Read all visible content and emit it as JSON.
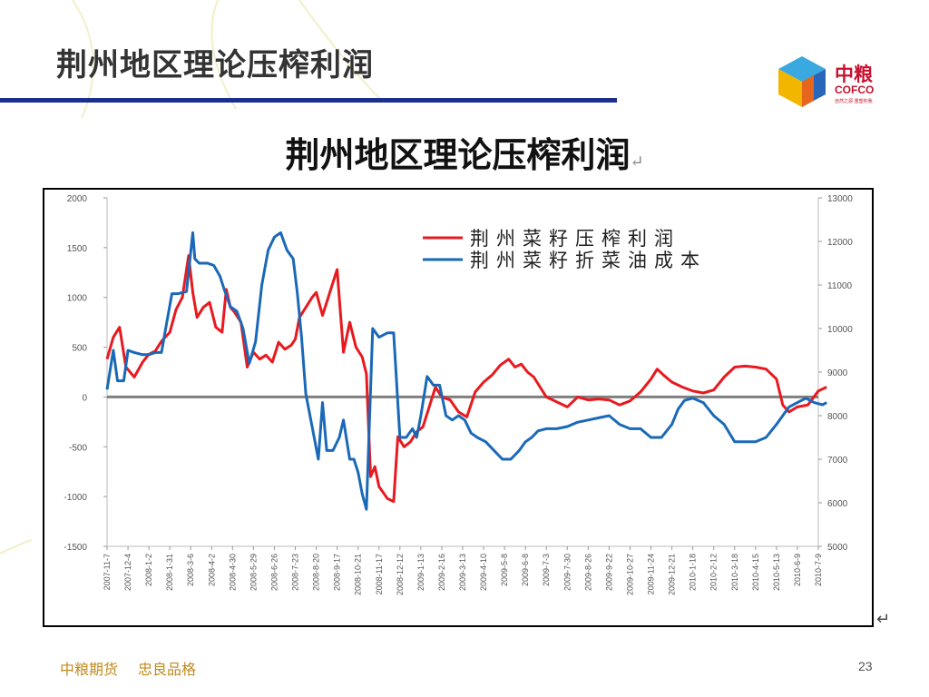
{
  "slide": {
    "title": "荆州地区理论压榨利润",
    "footer_company": "中粮期货",
    "footer_motto": "忠良品格",
    "page_number": "23",
    "accent_color": "#1c2f8f"
  },
  "logo": {
    "name_cn": "中粮",
    "name_en": "COFCO",
    "tagline": "自然之源 重塑你我",
    "colors": [
      "#f2b600",
      "#e8651e",
      "#2a66b8",
      "#39a9e0"
    ]
  },
  "chart_data": {
    "type": "line",
    "title": "荆州地区理论压榨利润",
    "x_labels": [
      "2007-11-7",
      "2007-12-4",
      "2008-1-2",
      "2008-1-31",
      "2008-3-6",
      "2008-4-2",
      "2008-4-30",
      "2008-5-29",
      "2008-6-26",
      "2008-7-23",
      "2008-8-20",
      "2008-9-17",
      "2008-10-21",
      "2008-11-17",
      "2008-12-12",
      "2009-1-13",
      "2009-2-16",
      "2009-3-13",
      "2009-4-10",
      "2009-5-8",
      "2009-6-8",
      "2009-7-3",
      "2009-7-30",
      "2009-8-26",
      "2009-9-22",
      "2009-10-27",
      "2009-11-24",
      "2009-12-21",
      "2010-1-18",
      "2010-2-12",
      "2010-3-18",
      "2010-4-15",
      "2010-5-13",
      "2010-6-9",
      "2010-7-9"
    ],
    "y_left": {
      "min": -1500,
      "max": 2000,
      "ticks": [
        2000,
        1500,
        1000,
        500,
        0,
        -500,
        -1000,
        -1500
      ]
    },
    "y_right": {
      "min": 5000,
      "max": 13000,
      "ticks": [
        13000,
        12000,
        11000,
        10000,
        9000,
        8000,
        7000,
        6000,
        5000
      ]
    },
    "zero_line": 0,
    "legend_position": "top-right",
    "series": [
      {
        "name": "荆州菜籽压榨利润",
        "axis": "left",
        "color": "#e8191f",
        "points": [
          [
            0,
            380
          ],
          [
            0.3,
            600
          ],
          [
            0.6,
            700
          ],
          [
            0.9,
            300
          ],
          [
            1.3,
            200
          ],
          [
            1.7,
            350
          ],
          [
            2,
            430
          ],
          [
            2.3,
            460
          ],
          [
            2.6,
            560
          ],
          [
            3,
            650
          ],
          [
            3.3,
            880
          ],
          [
            3.6,
            1000
          ],
          [
            3.9,
            1420
          ],
          [
            4.1,
            1050
          ],
          [
            4.3,
            800
          ],
          [
            4.6,
            900
          ],
          [
            4.9,
            950
          ],
          [
            5.2,
            700
          ],
          [
            5.5,
            650
          ],
          [
            5.7,
            1080
          ],
          [
            5.9,
            900
          ],
          [
            6.1,
            850
          ],
          [
            6.4,
            750
          ],
          [
            6.7,
            300
          ],
          [
            7,
            450
          ],
          [
            7.3,
            380
          ],
          [
            7.6,
            420
          ],
          [
            7.9,
            350
          ],
          [
            8.2,
            550
          ],
          [
            8.5,
            480
          ],
          [
            8.8,
            520
          ],
          [
            9,
            580
          ],
          [
            9.2,
            800
          ],
          [
            9.5,
            900
          ],
          [
            9.8,
            1000
          ],
          [
            10,
            1050
          ],
          [
            10.3,
            820
          ],
          [
            10.5,
            950
          ],
          [
            10.8,
            1150
          ],
          [
            11,
            1280
          ],
          [
            11.3,
            450
          ],
          [
            11.6,
            750
          ],
          [
            11.9,
            500
          ],
          [
            12.2,
            400
          ],
          [
            12.4,
            230
          ],
          [
            12.6,
            -800
          ],
          [
            12.8,
            -700
          ],
          [
            13,
            -900
          ],
          [
            13.4,
            -1020
          ],
          [
            13.7,
            -1050
          ],
          [
            13.9,
            -400
          ],
          [
            14.2,
            -500
          ],
          [
            14.5,
            -450
          ],
          [
            14.8,
            -350
          ],
          [
            15.1,
            -300
          ],
          [
            15.4,
            -100
          ],
          [
            15.7,
            100
          ],
          [
            16,
            0
          ],
          [
            16.4,
            -30
          ],
          [
            16.8,
            -150
          ],
          [
            17.2,
            -200
          ],
          [
            17.6,
            50
          ],
          [
            18,
            150
          ],
          [
            18.4,
            220
          ],
          [
            18.8,
            320
          ],
          [
            19.2,
            380
          ],
          [
            19.5,
            300
          ],
          [
            19.8,
            330
          ],
          [
            20.1,
            250
          ],
          [
            20.4,
            200
          ],
          [
            20.7,
            100
          ],
          [
            21,
            0
          ],
          [
            21.5,
            -50
          ],
          [
            22,
            -100
          ],
          [
            22.5,
            0
          ],
          [
            23,
            -30
          ],
          [
            23.5,
            -20
          ],
          [
            24,
            -30
          ],
          [
            24.5,
            -80
          ],
          [
            25,
            -40
          ],
          [
            25.5,
            50
          ],
          [
            26,
            180
          ],
          [
            26.3,
            280
          ],
          [
            26.6,
            220
          ],
          [
            27,
            150
          ],
          [
            27.5,
            100
          ],
          [
            28,
            60
          ],
          [
            28.5,
            40
          ],
          [
            29,
            70
          ],
          [
            29.5,
            200
          ],
          [
            30,
            300
          ],
          [
            30.5,
            310
          ],
          [
            31,
            300
          ],
          [
            31.5,
            280
          ],
          [
            32,
            180
          ],
          [
            32.3,
            -80
          ],
          [
            32.6,
            -150
          ],
          [
            33,
            -100
          ],
          [
            33.5,
            -80
          ],
          [
            34,
            60
          ],
          [
            34.4,
            100
          ]
        ]
      },
      {
        "name": "荆州菜籽折菜油成本",
        "axis": "right",
        "color": "#1a69b8",
        "points": [
          [
            0,
            8600
          ],
          [
            0.3,
            9500
          ],
          [
            0.5,
            8800
          ],
          [
            0.8,
            8800
          ],
          [
            1,
            9500
          ],
          [
            1.3,
            9450
          ],
          [
            1.7,
            9400
          ],
          [
            2,
            9400
          ],
          [
            2.3,
            9450
          ],
          [
            2.6,
            9450
          ],
          [
            2.8,
            10000
          ],
          [
            3.1,
            10800
          ],
          [
            3.4,
            10800
          ],
          [
            3.8,
            10850
          ],
          [
            4.1,
            12200
          ],
          [
            4.2,
            11600
          ],
          [
            4.4,
            11500
          ],
          [
            4.8,
            11500
          ],
          [
            5.1,
            11450
          ],
          [
            5.4,
            11200
          ],
          [
            5.6,
            10900
          ],
          [
            5.9,
            10500
          ],
          [
            6.2,
            10400
          ],
          [
            6.5,
            10000
          ],
          [
            6.8,
            9200
          ],
          [
            7.1,
            9700
          ],
          [
            7.4,
            11000
          ],
          [
            7.7,
            11800
          ],
          [
            8,
            12100
          ],
          [
            8.3,
            12200
          ],
          [
            8.6,
            11800
          ],
          [
            8.9,
            11600
          ],
          [
            9.1,
            10800
          ],
          [
            9.3,
            9800
          ],
          [
            9.5,
            8500
          ],
          [
            9.7,
            8000
          ],
          [
            9.9,
            7500
          ],
          [
            10.1,
            7000
          ],
          [
            10.3,
            8300
          ],
          [
            10.5,
            7200
          ],
          [
            10.8,
            7200
          ],
          [
            11.1,
            7500
          ],
          [
            11.3,
            7900
          ],
          [
            11.6,
            7000
          ],
          [
            11.8,
            7000
          ],
          [
            12,
            6700
          ],
          [
            12.2,
            6200
          ],
          [
            12.4,
            5850
          ],
          [
            12.7,
            10000
          ],
          [
            13,
            9800
          ],
          [
            13.4,
            9900
          ],
          [
            13.7,
            9900
          ],
          [
            14,
            7500
          ],
          [
            14.3,
            7500
          ],
          [
            14.6,
            7700
          ],
          [
            14.8,
            7500
          ],
          [
            15,
            8000
          ],
          [
            15.3,
            8900
          ],
          [
            15.6,
            8700
          ],
          [
            15.9,
            8700
          ],
          [
            16.2,
            8000
          ],
          [
            16.5,
            7900
          ],
          [
            16.8,
            8000
          ],
          [
            17.1,
            7900
          ],
          [
            17.4,
            7600
          ],
          [
            17.7,
            7500
          ],
          [
            18.1,
            7400
          ],
          [
            18.5,
            7200
          ],
          [
            18.9,
            7000
          ],
          [
            19.3,
            7000
          ],
          [
            19.7,
            7200
          ],
          [
            20,
            7400
          ],
          [
            20.3,
            7500
          ],
          [
            20.6,
            7650
          ],
          [
            21,
            7700
          ],
          [
            21.5,
            7700
          ],
          [
            22,
            7750
          ],
          [
            22.5,
            7850
          ],
          [
            23,
            7900
          ],
          [
            23.5,
            7950
          ],
          [
            24,
            8000
          ],
          [
            24.5,
            7800
          ],
          [
            25,
            7700
          ],
          [
            25.5,
            7700
          ],
          [
            26,
            7500
          ],
          [
            26.5,
            7500
          ],
          [
            27,
            7800
          ],
          [
            27.3,
            8150
          ],
          [
            27.6,
            8350
          ],
          [
            28,
            8400
          ],
          [
            28.5,
            8300
          ],
          [
            29,
            8000
          ],
          [
            29.5,
            7800
          ],
          [
            30,
            7400
          ],
          [
            30.5,
            7400
          ],
          [
            31,
            7400
          ],
          [
            31.5,
            7500
          ],
          [
            32,
            7800
          ],
          [
            32.3,
            8000
          ],
          [
            32.6,
            8200
          ],
          [
            33,
            8300
          ],
          [
            33.4,
            8400
          ],
          [
            33.8,
            8300
          ],
          [
            34.2,
            8250
          ],
          [
            34.4,
            8300
          ]
        ]
      }
    ]
  }
}
